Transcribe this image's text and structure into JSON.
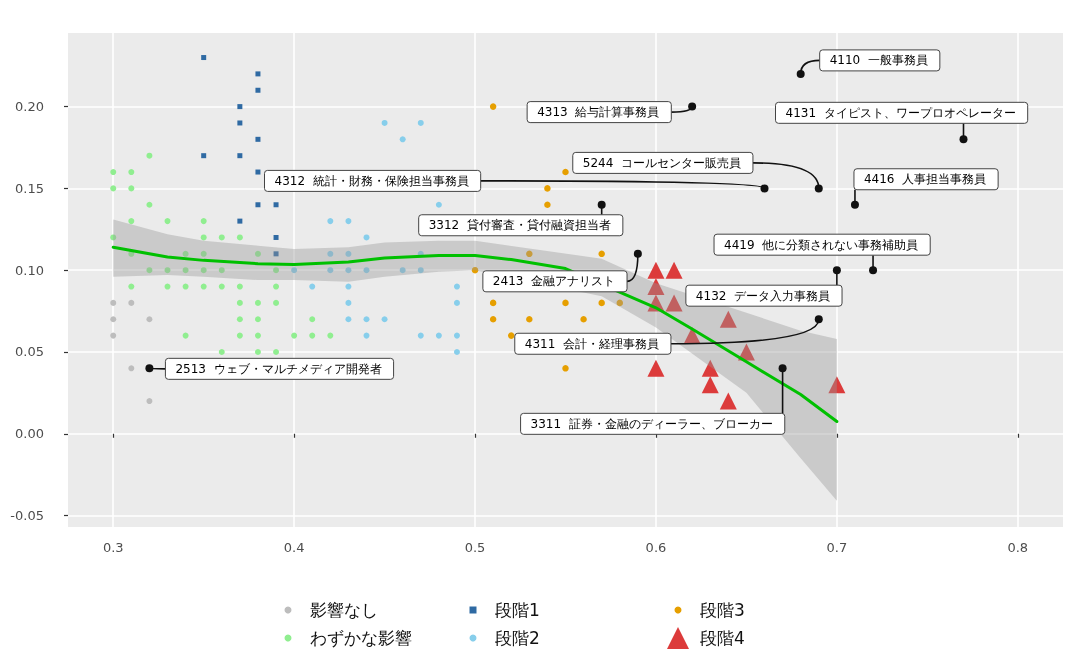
{
  "chart_data": {
    "type": "scatter",
    "xlim": [
      0.275,
      0.825
    ],
    "ylim": [
      -0.057,
      0.245
    ],
    "xticks": [
      0.3,
      0.4,
      0.5,
      0.6,
      0.7,
      0.8
    ],
    "yticks": [
      -0.05,
      {
        "value": 0,
        "label": "0.00"
      },
      0.05,
      {
        "value": 0.1,
        "label": "0.10"
      },
      0.15,
      {
        "value": 0.2,
        "label": "0.20"
      }
    ],
    "grid": true,
    "legend": "bottom",
    "series": [
      {
        "name": "影響なし",
        "color": "#bdbdbd",
        "marker": "circle",
        "x": [
          0.3,
          0.31,
          0.3,
          0.32,
          0.3,
          0.31,
          0.32
        ],
        "values": [
          0.08,
          0.08,
          0.07,
          0.07,
          0.06,
          0.04,
          0.02
        ]
      },
      {
        "name": "わずかな影響",
        "color": "#90ee90",
        "marker": "circle",
        "x": [
          0.32,
          0.3,
          0.31,
          0.3,
          0.31,
          0.32,
          0.31,
          0.33,
          0.35,
          0.3,
          0.35,
          0.36,
          0.37,
          0.31,
          0.34,
          0.35,
          0.38,
          0.32,
          0.33,
          0.34,
          0.35,
          0.36,
          0.39,
          0.31,
          0.33,
          0.34,
          0.35,
          0.36,
          0.37,
          0.39,
          0.37,
          0.38,
          0.39,
          0.37,
          0.38,
          0.41,
          0.34,
          0.37,
          0.38,
          0.4,
          0.41,
          0.42,
          0.36,
          0.38,
          0.39
        ],
        "values": [
          0.17,
          0.16,
          0.16,
          0.15,
          0.15,
          0.14,
          0.13,
          0.13,
          0.13,
          0.12,
          0.12,
          0.12,
          0.12,
          0.11,
          0.11,
          0.11,
          0.11,
          0.1,
          0.1,
          0.1,
          0.1,
          0.1,
          0.1,
          0.09,
          0.09,
          0.09,
          0.09,
          0.09,
          0.09,
          0.09,
          0.08,
          0.08,
          0.08,
          0.07,
          0.07,
          0.07,
          0.06,
          0.06,
          0.06,
          0.06,
          0.06,
          0.06,
          0.05,
          0.05,
          0.05
        ]
      },
      {
        "name": "段階1",
        "color": "#2f6aa3",
        "marker": "square",
        "x": [
          0.35,
          0.38,
          0.38,
          0.37,
          0.37,
          0.38,
          0.35,
          0.37,
          0.38,
          0.38,
          0.39,
          0.37,
          0.39,
          0.39
        ],
        "values": [
          0.23,
          0.22,
          0.21,
          0.2,
          0.19,
          0.18,
          0.17,
          0.17,
          0.16,
          0.14,
          0.14,
          0.13,
          0.12,
          0.11
        ]
      },
      {
        "name": "段階2",
        "color": "#87ceeb",
        "marker": "circle",
        "x": [
          0.45,
          0.47,
          0.46,
          0.48,
          0.42,
          0.43,
          0.44,
          0.42,
          0.43,
          0.47,
          0.4,
          0.42,
          0.43,
          0.44,
          0.46,
          0.47,
          0.41,
          0.43,
          0.49,
          0.43,
          0.49,
          0.43,
          0.44,
          0.45,
          0.44,
          0.47,
          0.48,
          0.49,
          0.49
        ],
        "values": [
          0.19,
          0.19,
          0.18,
          0.14,
          0.13,
          0.13,
          0.12,
          0.11,
          0.11,
          0.11,
          0.1,
          0.1,
          0.1,
          0.1,
          0.1,
          0.1,
          0.09,
          0.09,
          0.09,
          0.08,
          0.08,
          0.07,
          0.07,
          0.07,
          0.06,
          0.06,
          0.06,
          0.06,
          0.05
        ]
      },
      {
        "name": "段階3",
        "color": "#e69f00",
        "marker": "circle",
        "x": [
          0.51,
          0.55,
          0.54,
          0.54,
          0.53,
          0.57,
          0.5,
          0.51,
          0.55,
          0.57,
          0.58,
          0.51,
          0.53,
          0.56,
          0.52,
          0.55
        ],
        "values": [
          0.2,
          0.16,
          0.15,
          0.14,
          0.11,
          0.11,
          0.1,
          0.08,
          0.08,
          0.08,
          0.08,
          0.07,
          0.07,
          0.07,
          0.06,
          0.04
        ]
      },
      {
        "name": "段階4",
        "color": "#dc3b3b",
        "marker": "triangle",
        "x": [
          0.6,
          0.61,
          0.6,
          0.6,
          0.61,
          0.62,
          0.64,
          0.65,
          0.6,
          0.63,
          0.63,
          0.64,
          0.7
        ],
        "values": [
          0.1,
          0.1,
          0.09,
          0.08,
          0.08,
          0.06,
          0.07,
          0.05,
          0.04,
          0.04,
          0.03,
          0.02,
          0.03
        ]
      },
      {
        "type": "line",
        "color": "#00c000",
        "marker": "none",
        "x": [
          0.3,
          0.33,
          0.35,
          0.38,
          0.4,
          0.43,
          0.45,
          0.48,
          0.5,
          0.52,
          0.55,
          0.57,
          0.6,
          0.62,
          0.65,
          0.68,
          0.7
        ],
        "values": [
          0.114,
          0.108,
          0.106,
          0.104,
          0.1035,
          0.105,
          0.1075,
          0.109,
          0.109,
          0.1065,
          0.101,
          null,
          0.077,
          0.064,
          0.044,
          0.024,
          0.0075
        ],
        "upper": [
          0.131,
          0.122,
          0.118,
          0.115,
          0.113,
          0.114,
          0.117,
          0.118,
          0.118,
          null,
          null,
          0.107,
          0.092,
          null,
          0.074,
          0.063,
          0.058
        ],
        "lower": [
          0.096,
          0.097,
          0.096,
          0.094,
          0.094,
          0.093,
          0.096,
          0.099,
          0.1,
          null,
          null,
          0.084,
          0.065,
          null,
          0.025,
          -0.015,
          -0.041
        ]
      }
    ],
    "annotations": [
      {
        "text": "4110  一般事務員",
        "x": 0.68,
        "y": 0.22
      },
      {
        "text": "4313  給与計算事務員",
        "x": 0.62,
        "y": 0.2
      },
      {
        "text": "4131  タイピスト、ワープロオペレーター",
        "x": 0.77,
        "y": 0.18
      },
      {
        "text": "5244  コールセンター販売員",
        "x": 0.69,
        "y": 0.15
      },
      {
        "text": "4312  統計・財務・保険担当事務員",
        "x": 0.66,
        "y": 0.15
      },
      {
        "text": "4416  人事担当事務員",
        "x": 0.71,
        "y": 0.14
      },
      {
        "text": "3312  貸付審査・貸付融資担当者",
        "x": 0.57,
        "y": 0.14
      },
      {
        "text": "4419  他に分類されない事務補助員",
        "x": 0.72,
        "y": 0.1
      },
      {
        "text": "2413  金融アナリスト",
        "x": 0.59,
        "y": 0.11
      },
      {
        "text": "4132  データ入力事務員",
        "x": 0.7,
        "y": 0.1
      },
      {
        "text": "4311  会計・経理事務員",
        "x": 0.69,
        "y": 0.07
      },
      {
        "text": "2513  ウェブ・マルチメディア開発者",
        "x": 0.32,
        "y": 0.04
      },
      {
        "text": "3311  証券・金融のディーラー、ブローカー",
        "x": 0.67,
        "y": 0.04
      }
    ]
  }
}
